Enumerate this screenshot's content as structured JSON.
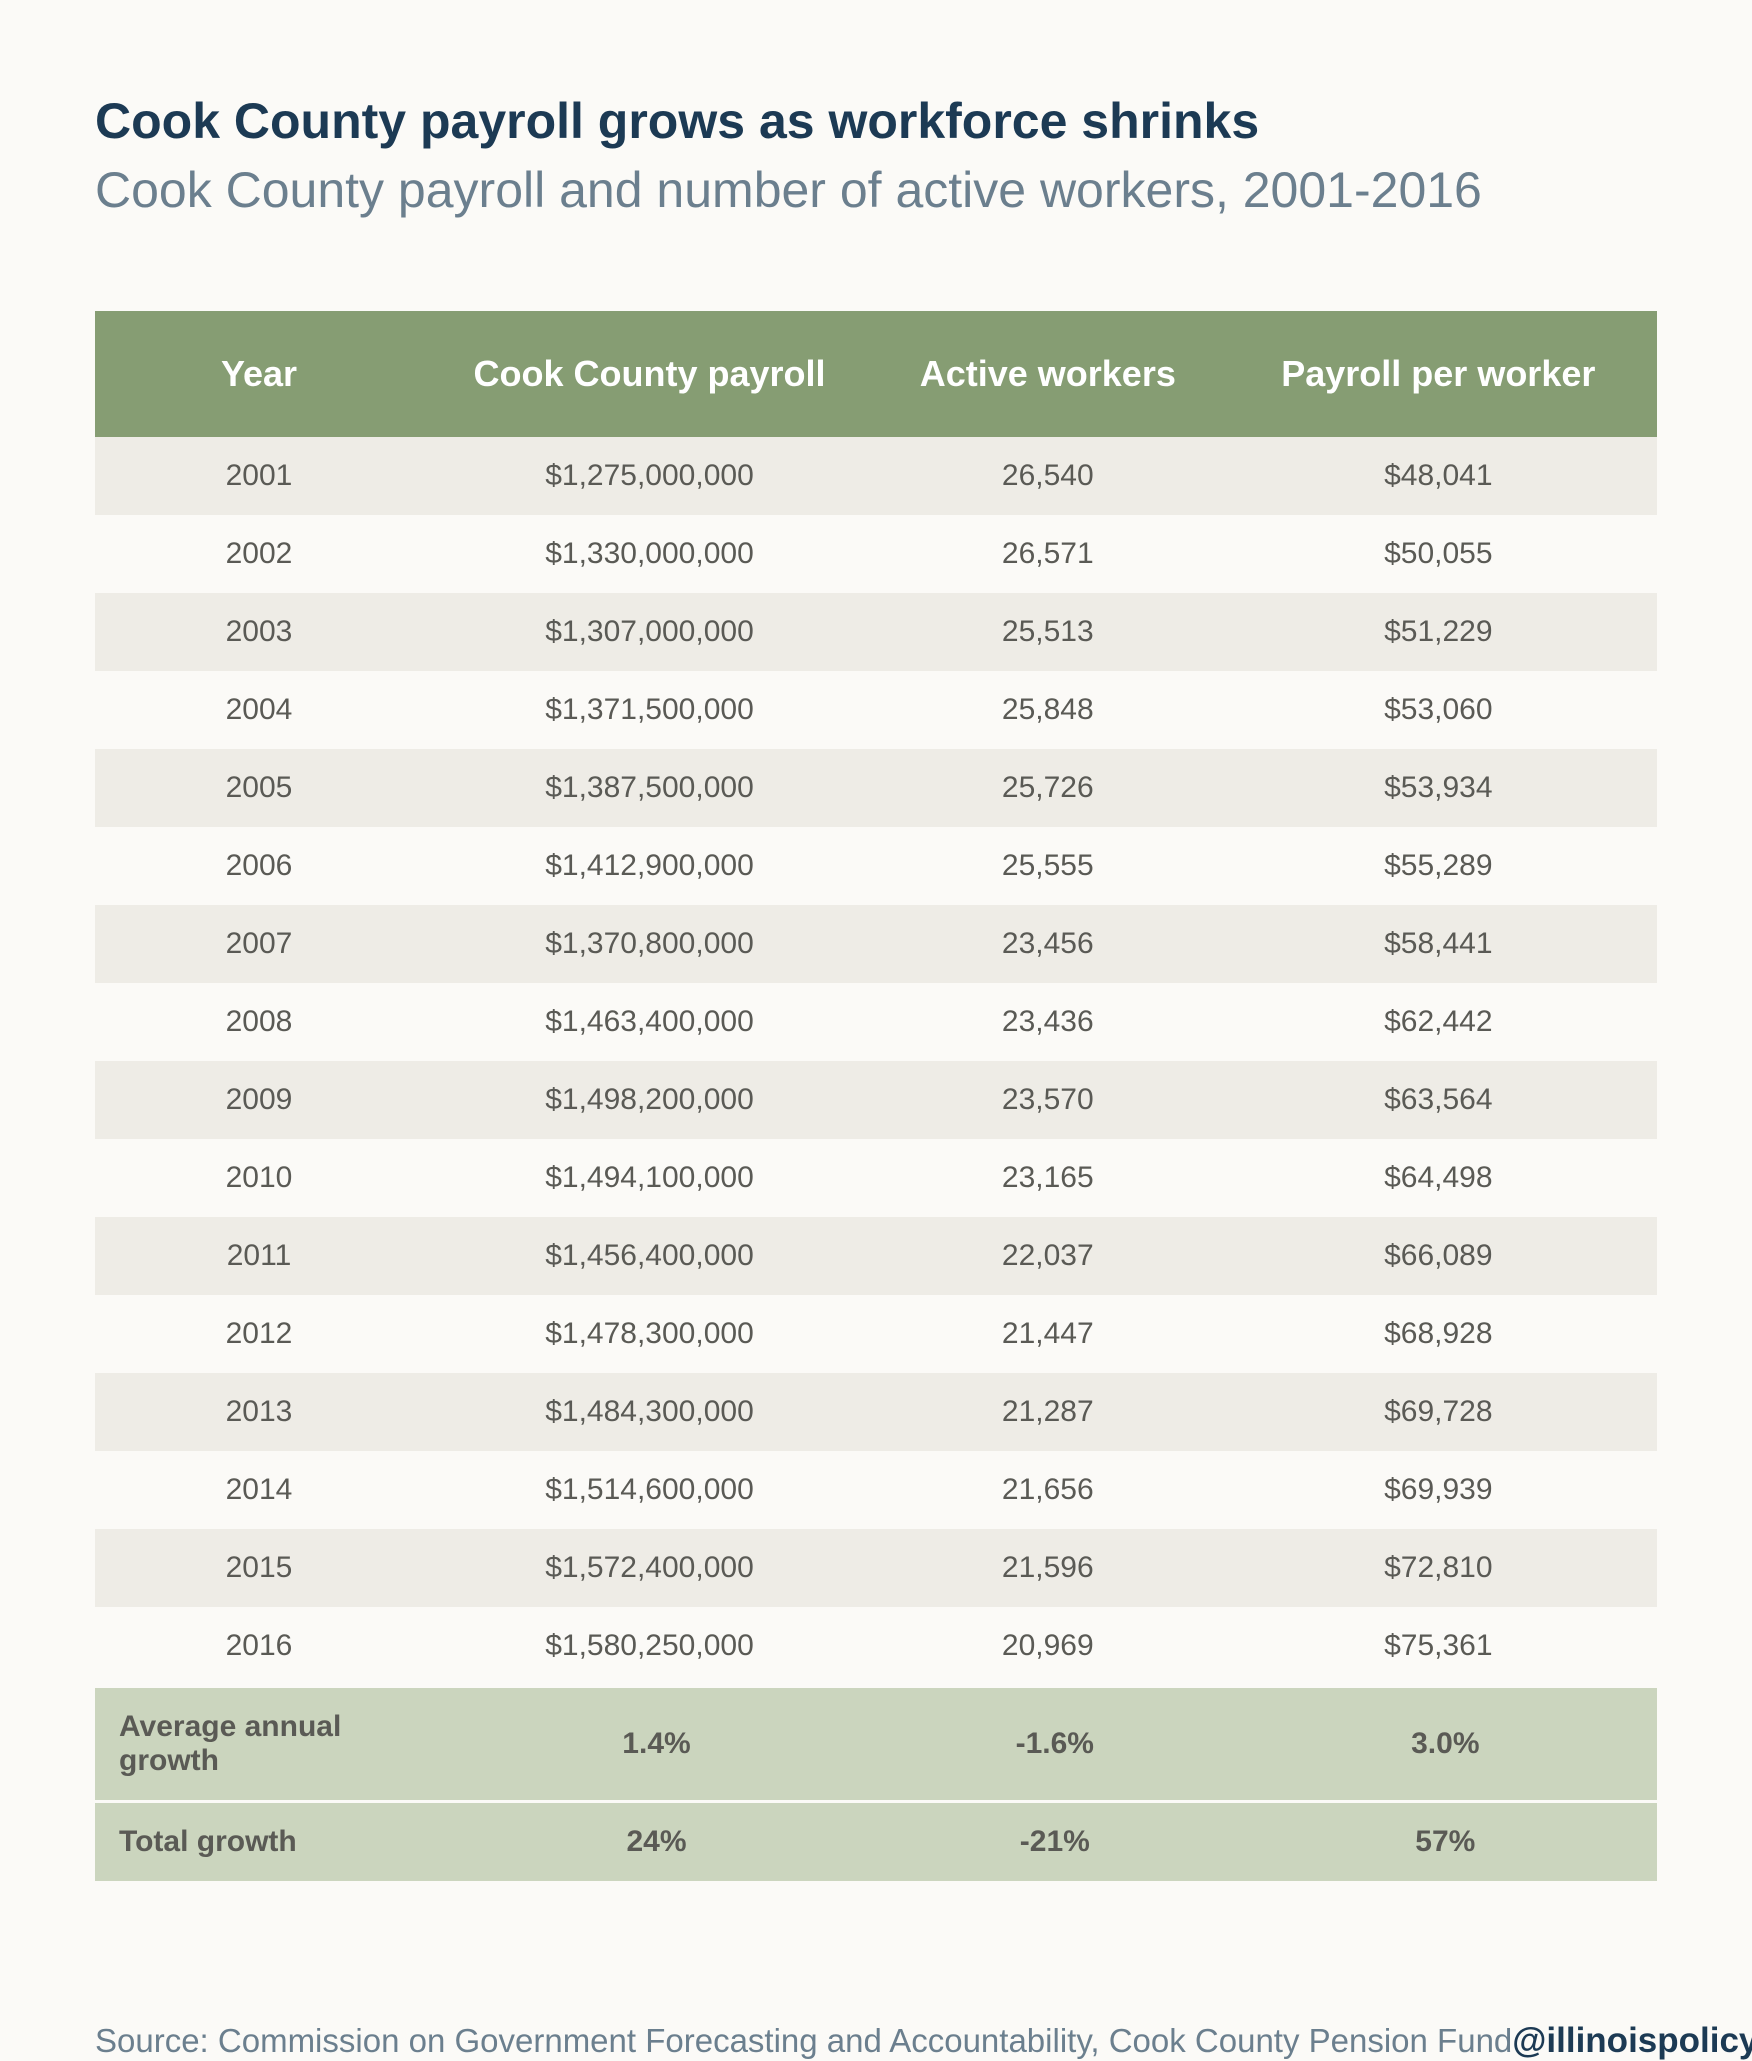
{
  "title": "Cook County payroll grows as workforce shrinks",
  "subtitle": "Cook County payroll and number of active workers, 2001-2016",
  "table": {
    "columns": [
      "Year",
      "Cook County payroll",
      "Active workers",
      "Payroll per worker"
    ],
    "header_bg": "#869d73",
    "header_text_color": "#ffffff",
    "header_fontsize": 36,
    "row_odd_bg": "#eeece6",
    "row_even_bg": "#fbfaf7",
    "cell_text_color": "#5a5a55",
    "cell_fontsize": 30,
    "summary_bg": "#cbd5be",
    "rows": [
      [
        "2001",
        "$1,275,000,000",
        "26,540",
        "$48,041"
      ],
      [
        "2002",
        "$1,330,000,000",
        "26,571",
        "$50,055"
      ],
      [
        "2003",
        "$1,307,000,000",
        "25,513",
        "$51,229"
      ],
      [
        "2004",
        "$1,371,500,000",
        "25,848",
        "$53,060"
      ],
      [
        "2005",
        "$1,387,500,000",
        "25,726",
        "$53,934"
      ],
      [
        "2006",
        "$1,412,900,000",
        "25,555",
        "$55,289"
      ],
      [
        "2007",
        "$1,370,800,000",
        "23,456",
        "$58,441"
      ],
      [
        "2008",
        "$1,463,400,000",
        "23,436",
        "$62,442"
      ],
      [
        "2009",
        "$1,498,200,000",
        "23,570",
        "$63,564"
      ],
      [
        "2010",
        "$1,494,100,000",
        "23,165",
        "$64,498"
      ],
      [
        "2011",
        "$1,456,400,000",
        "22,037",
        "$66,089"
      ],
      [
        "2012",
        "$1,478,300,000",
        "21,447",
        "$68,928"
      ],
      [
        "2013",
        "$1,484,300,000",
        "21,287",
        "$69,728"
      ],
      [
        "2014",
        "$1,514,600,000",
        "21,656",
        "$69,939"
      ],
      [
        "2015",
        "$1,572,400,000",
        "21,596",
        "$72,810"
      ],
      [
        "2016",
        "$1,580,250,000",
        "20,969",
        "$75,361"
      ]
    ],
    "summary_rows": [
      [
        "Average annual growth",
        "1.4%",
        "-1.6%",
        "3.0%"
      ],
      [
        "Total growth",
        "24%",
        "-21%",
        "57%"
      ]
    ]
  },
  "source": "Source: Commission on Government Forecasting and Accountability, Cook County Pension Fund",
  "handle": "@illinoispolicy",
  "colors": {
    "page_bg": "#fbfaf7",
    "title_color": "#1c3a54",
    "subtitle_color": "#6b7f8e"
  }
}
